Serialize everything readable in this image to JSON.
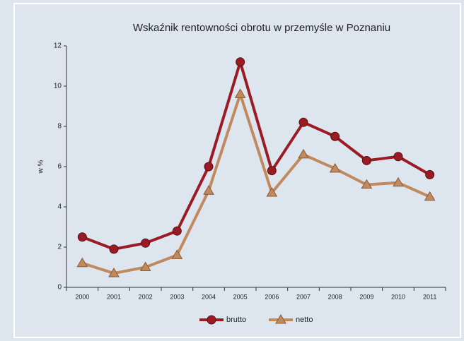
{
  "chart_data": {
    "type": "line",
    "title": "Wskaźnik rentowności obrotu w przemyśle w Poznaniu",
    "y_label": "w %",
    "categories": [
      "2000",
      "2001",
      "2002",
      "2003",
      "2004",
      "2005",
      "2006",
      "2007",
      "2008",
      "2009",
      "2010",
      "2011"
    ],
    "series": [
      {
        "name": "brutto",
        "color": "#9b1b24",
        "marker": "circle",
        "values": [
          2.5,
          1.9,
          2.2,
          2.8,
          6.0,
          11.2,
          5.8,
          8.2,
          7.5,
          6.3,
          6.5,
          5.6
        ]
      },
      {
        "name": "netto",
        "color": "#c08a5e",
        "marker": "triangle",
        "values": [
          1.2,
          0.7,
          1.0,
          1.6,
          4.8,
          9.6,
          4.7,
          6.6,
          5.9,
          5.1,
          5.2,
          4.5
        ]
      }
    ],
    "ylim": [
      0,
      12
    ],
    "yticks": [
      0,
      2,
      4,
      6,
      8,
      10,
      12
    ],
    "grid": false,
    "legend": "bottom"
  }
}
